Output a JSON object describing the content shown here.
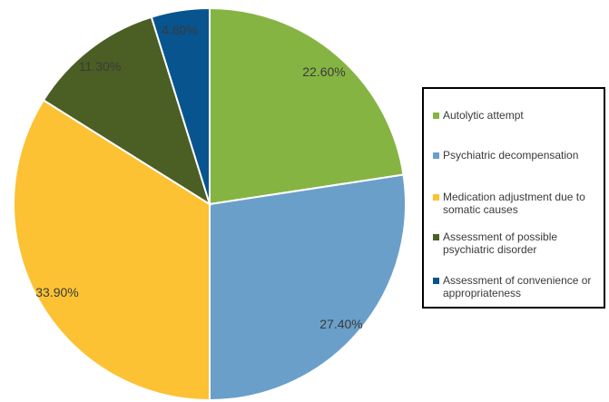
{
  "chart_data": {
    "type": "pie",
    "title": "",
    "slices": [
      {
        "name": "Autolytic attempt",
        "value": 22.6,
        "label": "22.60%",
        "color": "#86b443"
      },
      {
        "name": "Psychiatric decompensation",
        "value": 27.4,
        "label": "27.40%",
        "color": "#6a9fc9"
      },
      {
        "name": "Medication adjustment due to somatic causes",
        "value": 33.9,
        "label": "33.90%",
        "color": "#fcc234"
      },
      {
        "name": "Assessment of possible psychiatric disorder",
        "value": 11.3,
        "label": "11.30%",
        "color": "#4b5e24"
      },
      {
        "name": "Assessment of convenience or appropriateness",
        "value": 4.8,
        "label": "4.80%",
        "color": "#08548f"
      }
    ],
    "start_angle": "12 o'clock",
    "direction": "clockwise",
    "legend_position": "right"
  },
  "legend": {
    "items": [
      {
        "label": "Autolytic attempt"
      },
      {
        "label": "Psychiatric decompensation"
      },
      {
        "label": "Medication adjustment due to somatic causes"
      },
      {
        "label": "Assessment of possible psychiatric disorder"
      },
      {
        "label": "Assessment of convenience or appropriateness"
      }
    ]
  }
}
